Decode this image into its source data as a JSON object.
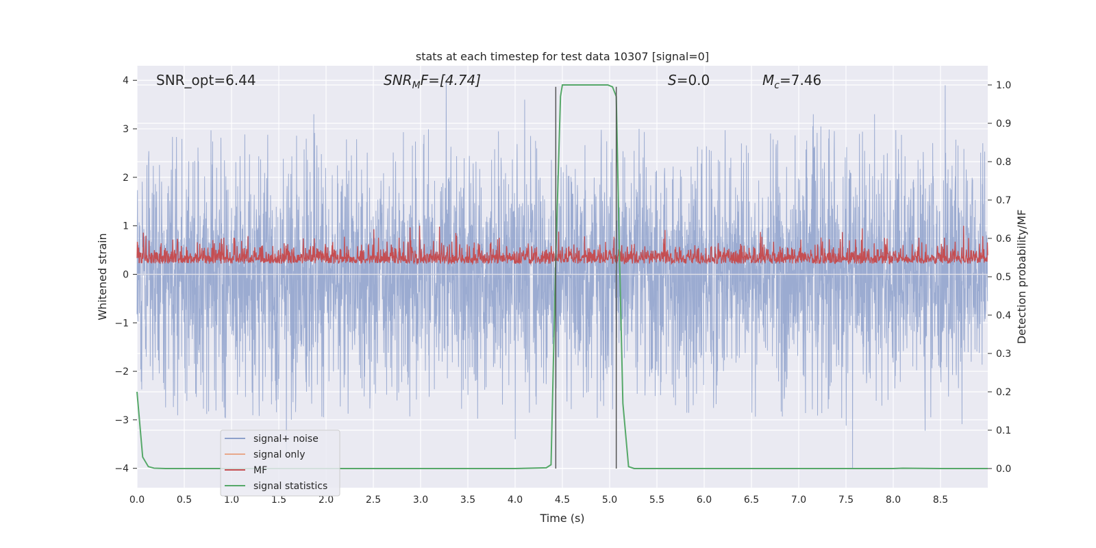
{
  "chart_data": {
    "type": "line",
    "title": "stats at each timestep for test data 10307 [signal=0]",
    "xlabel": "Time (s)",
    "ylabel_left": "Whitened strain",
    "ylabel_right": "Detection probability/MF",
    "xlim": [
      0,
      9.0
    ],
    "ylim_left": [
      -4.4,
      4.3
    ],
    "ylim_right": [
      -0.05,
      1.05
    ],
    "x_ticks": [
      "0.0",
      "0.5",
      "1.0",
      "1.5",
      "2.0",
      "2.5",
      "3.0",
      "3.5",
      "4.0",
      "4.5",
      "5.0",
      "5.5",
      "6.0",
      "6.5",
      "7.0",
      "7.5",
      "8.0",
      "8.5"
    ],
    "y_ticks_left": [
      "4",
      "3",
      "2",
      "1",
      "0",
      "−1",
      "−2",
      "−3",
      "−4"
    ],
    "y_ticks_right": [
      "1.0",
      "0.9",
      "0.8",
      "0.7",
      "0.6",
      "0.5",
      "0.4",
      "0.3",
      "0.2",
      "0.1",
      "0.0"
    ],
    "grid": true,
    "legend_position": "lower-left",
    "annotations": {
      "snr_opt": "SNR_opt=6.44",
      "snr_mf_base": "SNR",
      "snr_mf_sub": "M",
      "snr_mf_rest": "F=[4.74]",
      "s_var": "S",
      "s_rest": "=0.0",
      "mc_var": "M",
      "mc_sub": "c",
      "mc_rest": "=7.46"
    },
    "vertical_lines_x": [
      4.43,
      5.07
    ],
    "series": [
      {
        "name": "signal+ noise",
        "color": "#8da0cb",
        "axis": "left",
        "description_range": [
          -4.0,
          4.0
        ],
        "peaks": [
          {
            "x": 3.27,
            "y": 3.95
          },
          {
            "x": 8.55,
            "y": 3.9
          },
          {
            "x": 4.1,
            "y": 3.6
          },
          {
            "x": 7.57,
            "y": -4.0
          },
          {
            "x": 1.58,
            "y": -3.8
          },
          {
            "x": 4.0,
            "y": -3.4
          }
        ]
      },
      {
        "name": "signal only",
        "color": "#e8a88a",
        "axis": "left"
      },
      {
        "name": "MF",
        "color": "#c44e52",
        "axis": "left",
        "level": 0.3,
        "amplitude": 0.3
      },
      {
        "name": "signal statistics",
        "color": "#55a868",
        "axis": "right",
        "x": [
          0.0,
          0.06,
          0.12,
          0.18,
          0.3,
          0.5,
          1.0,
          2.0,
          3.0,
          4.0,
          4.33,
          4.38,
          4.43,
          4.48,
          4.5,
          4.55,
          4.8,
          4.98,
          5.03,
          5.07,
          5.1,
          5.14,
          5.2,
          5.26,
          5.4,
          6.0,
          7.0,
          8.0,
          8.1,
          8.5,
          9.0
        ],
        "y": [
          0.2,
          0.03,
          0.005,
          0.001,
          0.0,
          0.0,
          0.0,
          0.0,
          0.0,
          0.0,
          0.002,
          0.01,
          0.55,
          0.97,
          1.0,
          1.0,
          1.0,
          1.0,
          0.995,
          0.97,
          0.6,
          0.17,
          0.005,
          0.0,
          0.0,
          0.0,
          0.0,
          0.0,
          0.001,
          0.0,
          0.0
        ]
      }
    ]
  }
}
